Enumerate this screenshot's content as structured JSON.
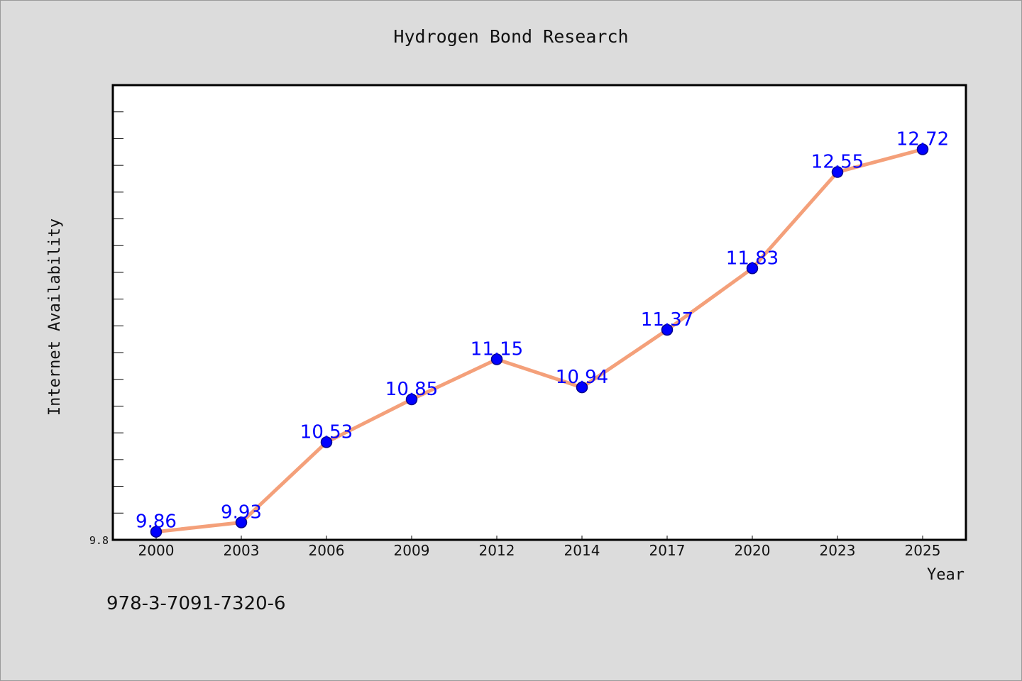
{
  "chart_data": {
    "type": "line",
    "title": "Hydrogen Bond Research",
    "xlabel": "Year",
    "ylabel": "Internet Availability",
    "categories": [
      "2000",
      "2003",
      "2006",
      "2009",
      "2012",
      "2014",
      "2017",
      "2020",
      "2023",
      "2025"
    ],
    "series": [
      {
        "values": [
          9.86,
          9.93,
          10.53,
          10.85,
          11.15,
          10.94,
          11.37,
          11.83,
          12.55,
          12.72
        ]
      }
    ],
    "data_labels": [
      "9.86",
      "9.93",
      "10.53",
      "10.85",
      "11.15",
      "10.94",
      "11.37",
      "11.83",
      "12.55",
      "12.72"
    ],
    "y_tick_labels": [
      "9.8"
    ],
    "ylim": [
      9.8,
      13.2
    ],
    "grid": false,
    "legend": "none",
    "colors": {
      "line": "#f4a07a",
      "marker": "#0000ff",
      "data_label": "#0000ff",
      "background": "#dcdcdc",
      "plot_background": "#ffffff"
    }
  },
  "footer": {
    "isbn": "978-3-7091-7320-6"
  }
}
